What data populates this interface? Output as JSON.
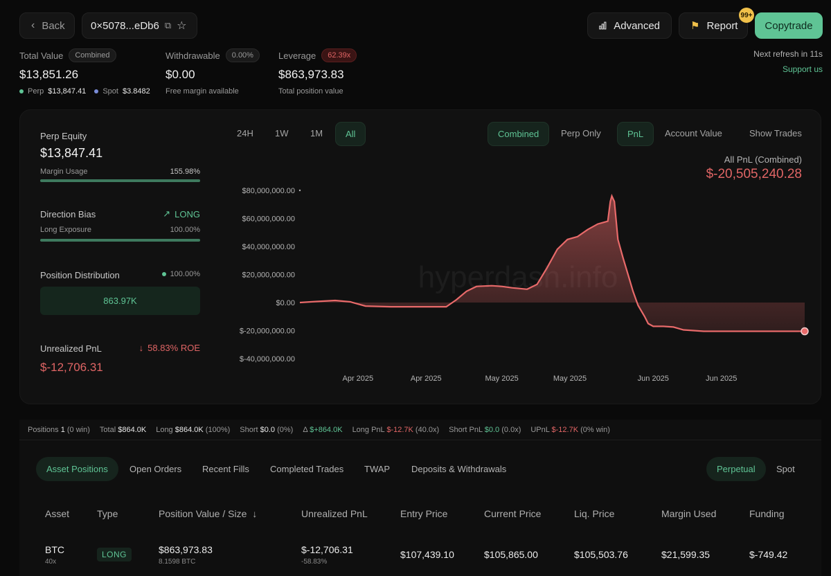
{
  "header": {
    "back_label": "Back",
    "address": "0×5078...eDb6",
    "advanced_label": "Advanced",
    "report_label": "Report",
    "report_badge": "99+",
    "copytrade_label": "Copytrade",
    "refresh_text": "Next refresh in 11s",
    "support_label": "Support us"
  },
  "summary": {
    "total_value_label": "Total Value",
    "total_value_chip": "Combined",
    "total_value": "$13,851.26",
    "perp_label": "Perp",
    "perp_value": "$13,847.41",
    "spot_label": "Spot",
    "spot_value": "$3.8482",
    "withdrawable_label": "Withdrawable",
    "withdrawable_chip": "0.00%",
    "withdrawable_value": "$0.00",
    "withdrawable_sub": "Free margin available",
    "leverage_label": "Leverage",
    "leverage_chip": "62.39x",
    "leverage_value": "$863,973.83",
    "leverage_sub": "Total position value"
  },
  "side": {
    "perp_equity_label": "Perp Equity",
    "perp_equity_value": "$13,847.41",
    "margin_usage_label": "Margin Usage",
    "margin_usage_value": "155.98%",
    "margin_usage_fill": 1.0,
    "direction_bias_label": "Direction Bias",
    "direction_bias_value": "LONG",
    "long_exposure_label": "Long Exposure",
    "long_exposure_value": "100.00%",
    "position_distribution_label": "Position Distribution",
    "position_distribution_value": "100.00%",
    "distribution_bar_value": "863.97K",
    "unrealized_label": "Unrealized PnL",
    "unrealized_roe": "58.83% ROE",
    "unrealized_value": "$-12,706.31"
  },
  "chart_controls": {
    "ranges": [
      "24H",
      "1W",
      "1M",
      "All"
    ],
    "active_range": "All",
    "modes": [
      "Combined",
      "Perp Only"
    ],
    "active_mode": "Combined",
    "metrics": [
      "PnL",
      "Account Value"
    ],
    "active_metric": "PnL",
    "show_trades_label": "Show Trades",
    "headline_label": "All PnL (Combined)",
    "headline_value": "$-20,505,240.28",
    "watermark": "hyperdash.info"
  },
  "chart_data": {
    "type": "area",
    "title": "All PnL (Combined)",
    "ylim": [
      -40000000,
      80000000
    ],
    "y_ticks": [
      80000000,
      60000000,
      40000000,
      20000000,
      0,
      -20000000,
      -40000000
    ],
    "y_tick_labels": [
      "$80,000,000.00",
      "$60,000,000.00",
      "$40,000,000.00",
      "$20,000,000.00",
      "$0.00",
      "$-20,000,000.00",
      "$-40,000,000.00"
    ],
    "x_tick_labels": [
      "Apr 2025",
      "Apr 2025",
      "May 2025",
      "May 2025",
      "Jun 2025",
      "Jun 2025"
    ],
    "x_range": [
      0,
      100
    ],
    "x_ticks": [
      11.5,
      25,
      40,
      53.5,
      70,
      83.5
    ],
    "series": [
      {
        "values": [
          [
            0,
            0
          ],
          [
            3,
            700000
          ],
          [
            7,
            1500000
          ],
          [
            10,
            500000
          ],
          [
            13,
            -2500000
          ],
          [
            18,
            -3000000
          ],
          [
            22,
            -3000000
          ],
          [
            27,
            -3000000
          ],
          [
            29,
            -3000000
          ],
          [
            31,
            2000000
          ],
          [
            33,
            8000000
          ],
          [
            35,
            11500000
          ],
          [
            38,
            12000000
          ],
          [
            40,
            11500000
          ],
          [
            42,
            10500000
          ],
          [
            45,
            9500000
          ],
          [
            47,
            13000000
          ],
          [
            49,
            25000000
          ],
          [
            51,
            38000000
          ],
          [
            53,
            45000000
          ],
          [
            55,
            47000000
          ],
          [
            57,
            52000000
          ],
          [
            59,
            56000000
          ],
          [
            60,
            57000000
          ],
          [
            61,
            58000000
          ],
          [
            61.5,
            72000000
          ],
          [
            61.8,
            76000000
          ],
          [
            62.3,
            72000000
          ],
          [
            63,
            45000000
          ],
          [
            64,
            32000000
          ],
          [
            65,
            20000000
          ],
          [
            66,
            8000000
          ],
          [
            67,
            -2000000
          ],
          [
            68.3,
            -10000000
          ],
          [
            69,
            -15000000
          ],
          [
            70,
            -17000000
          ],
          [
            72,
            -17000000
          ],
          [
            74,
            -17500000
          ],
          [
            76,
            -19500000
          ],
          [
            80,
            -20500000
          ],
          [
            90,
            -20500000
          ],
          [
            100,
            -20505240
          ]
        ]
      }
    ]
  },
  "positions_strip": {
    "positions_label": "Positions",
    "positions_value": "1",
    "positions_note": "(0 win)",
    "total_label": "Total",
    "total_value": "$864.0K",
    "long_label": "Long",
    "long_value": "$864.0K",
    "long_note": "(100%)",
    "short_label": "Short",
    "short_value": "$0.0",
    "short_note": "(0%)",
    "delta_label": "Δ",
    "delta_value": "$+864.0K",
    "long_pnl_label": "Long PnL",
    "long_pnl_value": "$-12.7K",
    "long_pnl_note": "(40.0x)",
    "short_pnl_label": "Short PnL",
    "short_pnl_value": "$0.0",
    "short_pnl_note": "(0.0x)",
    "upnl_label": "UPnL",
    "upnl_value": "$-12.7K",
    "upnl_note": "(0% win)"
  },
  "tabs": {
    "items": [
      "Asset Positions",
      "Open Orders",
      "Recent Fills",
      "Completed Trades",
      "TWAP",
      "Deposits & Withdrawals"
    ],
    "right": [
      "Perpetual",
      "Spot"
    ]
  },
  "table": {
    "headers": [
      "Asset",
      "Type",
      "Position Value / Size",
      "Unrealized PnL",
      "Entry Price",
      "Current Price",
      "Liq. Price",
      "Margin Used",
      "Funding"
    ],
    "row": {
      "asset": "BTC",
      "leverage": "40x",
      "type": "LONG",
      "position_value": "$863,973.83",
      "size": "8.1598 BTC",
      "unrealized": "$-12,706.31",
      "unrealized_pct": "-58.83%",
      "entry": "$107,439.10",
      "current": "$105,865.00",
      "liq": "$105,503.76",
      "margin": "$21,599.35",
      "funding": "$-749.42"
    }
  },
  "colors": {
    "accent": "#5fc495",
    "negative": "#e06565",
    "background": "#0a0a0a"
  }
}
